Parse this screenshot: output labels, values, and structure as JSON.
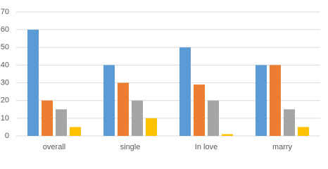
{
  "chart_data": {
    "type": "bar",
    "categories": [
      "overall",
      "single",
      "In love",
      "marry"
    ],
    "series": [
      {
        "color": "#5b9bd5",
        "values": [
          60,
          40,
          50,
          40
        ]
      },
      {
        "color": "#ed7d31",
        "values": [
          20,
          30,
          29,
          40
        ]
      },
      {
        "color": "#a5a5a5",
        "values": [
          15,
          20,
          20,
          15
        ]
      },
      {
        "color": "#ffc000",
        "values": [
          5,
          10,
          1,
          5
        ]
      }
    ],
    "ylim": [
      0,
      70
    ],
    "yticks": [
      0,
      10,
      20,
      30,
      40,
      50,
      60,
      70
    ],
    "grid": true
  }
}
